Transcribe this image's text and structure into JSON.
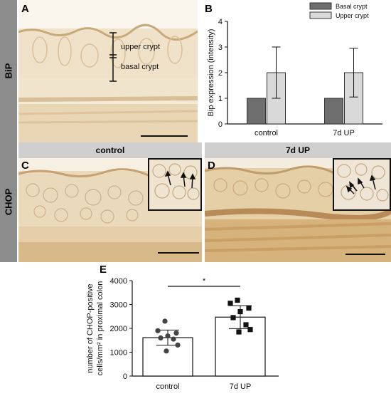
{
  "panels": {
    "a": {
      "letter": "A",
      "row_label": "BiP",
      "annot_upper": "upper crypt",
      "annot_basal": "basal crypt"
    },
    "b": {
      "letter": "B"
    },
    "c": {
      "letter": "C",
      "header": "control",
      "row_label": "CHOP"
    },
    "d": {
      "letter": "D",
      "header": "7d UP"
    },
    "e": {
      "letter": "E"
    }
  },
  "colors": {
    "sidebar": "#8c8c8c",
    "header_bg": "#cfcfcf",
    "tissue": "#e8d6b8",
    "basal_bar": "#6e6e6e",
    "upper_bar": "#d9d9d9",
    "dot": "#444444"
  },
  "chart_data": [
    {
      "id": "B",
      "type": "bar",
      "categories": [
        "control",
        "7d UP"
      ],
      "series": [
        {
          "name": "Basal crypt",
          "values": [
            1,
            1
          ],
          "err": [
            0,
            0
          ]
        },
        {
          "name": "Upper crypt",
          "values": [
            2,
            2
          ],
          "err": [
            1.0,
            0.95
          ]
        }
      ],
      "ylabel": "Bip expression (intensity)",
      "ylim": [
        0,
        4
      ],
      "yticks": [
        "0",
        "1",
        "2",
        "3",
        "4"
      ],
      "legend": "top-right"
    },
    {
      "id": "E",
      "type": "bar",
      "categories": [
        "control",
        "7d UP"
      ],
      "values": [
        1610,
        2470
      ],
      "sd": [
        320,
        480
      ],
      "points": [
        [
          2300,
          1900,
          1800,
          1680,
          1600,
          1550,
          1300,
          1050
        ],
        [
          3180,
          3050,
          2850,
          2700,
          2450,
          2150,
          1950,
          1850
        ]
      ],
      "ylabel_line1": "number of CHOP-positive",
      "ylabel_line2": "cells/mm² in proximal colon",
      "ylim": [
        0,
        4000
      ],
      "yticks": [
        "0",
        "1000",
        "2000",
        "3000",
        "4000"
      ],
      "significance": "*"
    }
  ]
}
